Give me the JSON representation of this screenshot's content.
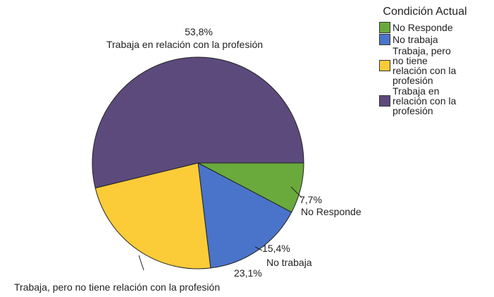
{
  "chart_data": {
    "type": "pie",
    "legend_title": "Condición Actual",
    "categories": [
      "No Responde",
      "No trabaja",
      "Trabaja, pero no tiene relación con la profesión",
      "Trabaja en relación con la profesión"
    ],
    "values": [
      7.7,
      15.4,
      23.1,
      53.8
    ],
    "value_labels": [
      "7,7%",
      "15,4%",
      "23,1%",
      "53,8%"
    ],
    "colors": [
      "#6aaa3c",
      "#4a74c9",
      "#fbcb38",
      "#5c4a7d"
    ],
    "legend": "right"
  }
}
